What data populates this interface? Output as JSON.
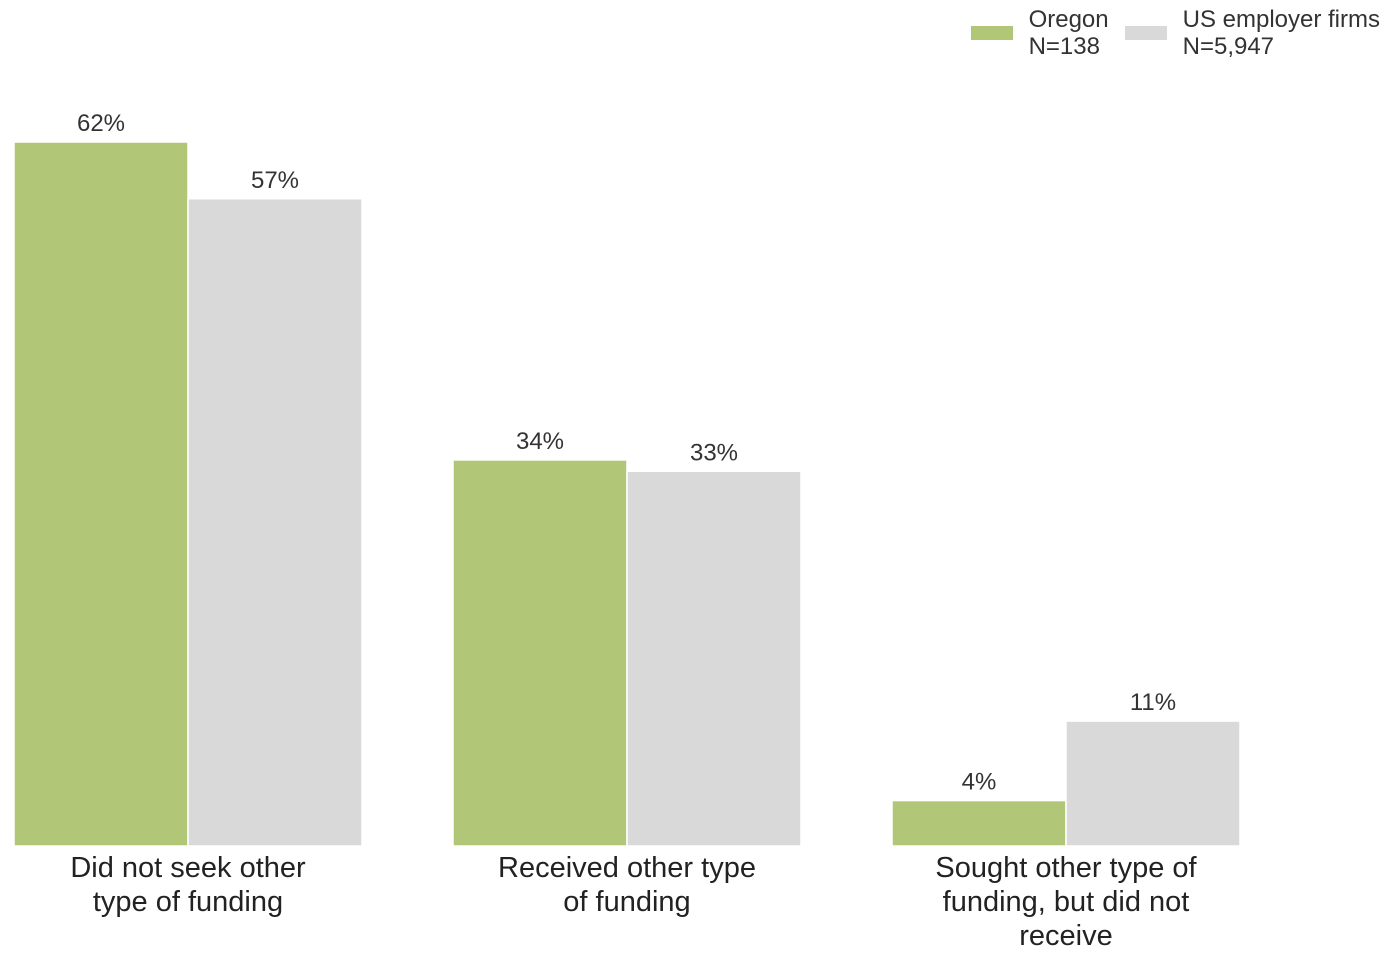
{
  "chart_data": {
    "type": "bar",
    "categories": [
      "Did not seek other type of funding",
      "Received other type of funding",
      "Sought other type of funding, but did not receive"
    ],
    "category_lines": [
      [
        "Did not seek other",
        "type of funding"
      ],
      [
        "Received other type",
        "of funding"
      ],
      [
        "Sought other type of",
        "funding, but did not",
        "receive"
      ]
    ],
    "series": [
      {
        "name": "Oregon",
        "n_label": "N=138",
        "color": "#b2c678",
        "values": [
          62,
          34,
          4
        ],
        "labels": [
          "62%",
          "34%",
          "4%"
        ]
      },
      {
        "name": "US employer firms",
        "n_label": "N=5,947",
        "color": "#d9d9d9",
        "values": [
          57,
          33,
          11
        ],
        "labels": [
          "57%",
          "33%",
          "11%"
        ]
      }
    ],
    "unit": "%",
    "ylim": [
      0,
      62
    ],
    "grid": false,
    "legend_position": "top-right"
  }
}
